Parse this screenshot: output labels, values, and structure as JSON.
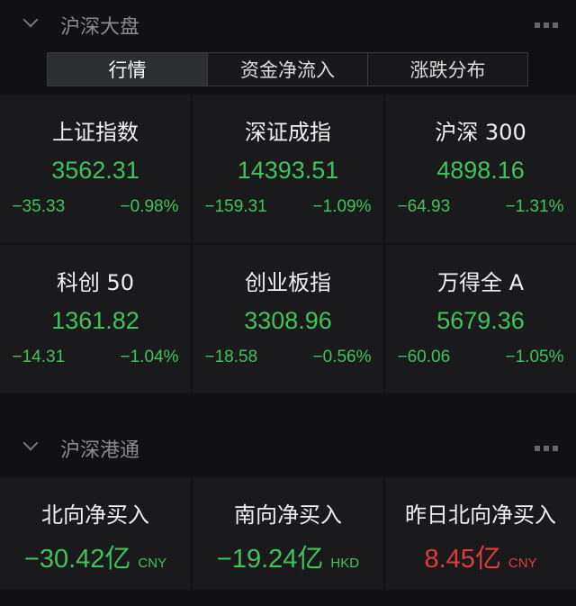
{
  "section1": {
    "title": "沪深大盘",
    "tabs": [
      "行情",
      "资金净流入",
      "涨跌分布"
    ],
    "active_tab": 0
  },
  "indices": [
    {
      "name": "上证指数",
      "value": "3562.31",
      "change": "−35.33",
      "pct": "−0.98%"
    },
    {
      "name": "深证成指",
      "value": "14393.51",
      "change": "−159.31",
      "pct": "−1.09%"
    },
    {
      "name": "沪深 300",
      "value": "4898.16",
      "change": "−64.93",
      "pct": "−1.31%"
    },
    {
      "name": "科创 50",
      "value": "1361.82",
      "change": "−14.31",
      "pct": "−1.04%"
    },
    {
      "name": "创业板指",
      "value": "3308.96",
      "change": "−18.58",
      "pct": "−0.56%"
    },
    {
      "name": "万得全 A",
      "value": "5679.36",
      "change": "−60.06",
      "pct": "−1.05%"
    }
  ],
  "section2": {
    "title": "沪深港通"
  },
  "flows": [
    {
      "name": "北向净买入",
      "value": "−30.42亿",
      "currency": "CNY",
      "direction": "down"
    },
    {
      "name": "南向净买入",
      "value": "−19.24亿",
      "currency": "HKD",
      "direction": "down"
    },
    {
      "name": "昨日北向净买入",
      "value": "8.45亿",
      "currency": "CNY",
      "direction": "up"
    }
  ],
  "colors": {
    "down": "#3fc35a",
    "up": "#e03b3b",
    "background": "#111113",
    "card": "#1a1a1c"
  }
}
